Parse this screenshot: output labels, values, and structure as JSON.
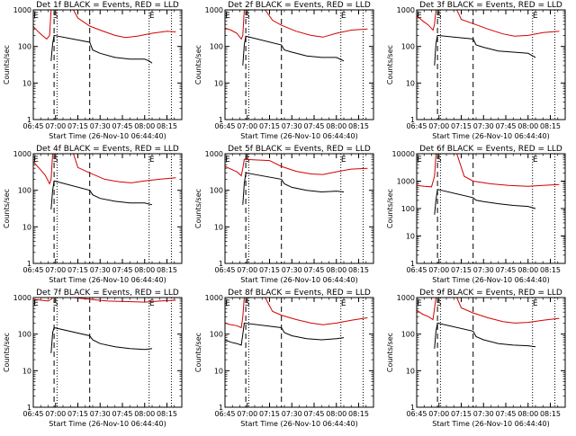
{
  "layout": {
    "rows": 3,
    "cols": 3
  },
  "colors": {
    "events": "#000000",
    "lld": "#d40000",
    "axes": "#000000",
    "background": "#ffffff"
  },
  "xaxis": {
    "tick_labels": [
      "06:45",
      "07:00",
      "07:15",
      "07:30",
      "07:45",
      "08:00",
      "08:15"
    ],
    "tick_minutes": [
      0,
      15,
      30,
      45,
      60,
      75,
      90
    ],
    "range_minutes": [
      0,
      100
    ],
    "label": "Start Time (26-Nov-10 06:44:40)"
  },
  "markers": {
    "S_minute": 15,
    "E_minute": 0,
    "E2_minute": 78,
    "dashed_minutes": [
      14,
      38
    ],
    "dotted_minutes": [
      16,
      78,
      93
    ],
    "S_label": "S",
    "E_label": "E"
  },
  "chart_data": [
    {
      "type": "line",
      "title": "Det 1f BLACK = Events, RED = LLD",
      "ylabel": "Counts/sec",
      "yscale": "log",
      "ylim": [
        1,
        1000
      ],
      "ytick_labels": [
        "1",
        "10",
        "100",
        "1000"
      ],
      "series": [
        {
          "color": "red",
          "points": [
            [
              0,
              350
            ],
            [
              3,
              260
            ],
            [
              6,
              200
            ],
            [
              9,
              160
            ],
            [
              11,
              200
            ],
            [
              12,
              1000
            ],
            [
              27,
              1000
            ],
            [
              30,
              600
            ],
            [
              38,
              360
            ],
            [
              45,
              280
            ],
            [
              55,
              200
            ],
            [
              62,
              175
            ],
            [
              70,
              190
            ],
            [
              80,
              230
            ],
            [
              90,
              260
            ],
            [
              96,
              250
            ]
          ]
        },
        {
          "color": "black",
          "points": [
            [
              12,
              40
            ],
            [
              13,
              120
            ],
            [
              14,
              200
            ],
            [
              38,
              130
            ],
            [
              40,
              80
            ],
            [
              45,
              65
            ],
            [
              55,
              50
            ],
            [
              65,
              45
            ],
            [
              75,
              45
            ],
            [
              78,
              40
            ],
            [
              80,
              35
            ]
          ]
        }
      ]
    },
    {
      "type": "line",
      "title": "Det 2f BLACK = Events, RED = LLD",
      "ylabel": "Counts/sec",
      "yscale": "log",
      "ylim": [
        1,
        1000
      ],
      "ytick_labels": [
        "1",
        "10",
        "100",
        "1000"
      ],
      "series": [
        {
          "color": "red",
          "points": [
            [
              0,
              320
            ],
            [
              4,
              280
            ],
            [
              8,
              230
            ],
            [
              11,
              160
            ],
            [
              12,
              200
            ],
            [
              13,
              1000
            ],
            [
              27,
              1000
            ],
            [
              32,
              520
            ],
            [
              38,
              380
            ],
            [
              48,
              260
            ],
            [
              58,
              200
            ],
            [
              66,
              180
            ],
            [
              75,
              230
            ],
            [
              85,
              280
            ],
            [
              96,
              300
            ]
          ]
        },
        {
          "color": "black",
          "points": [
            [
              12,
              30
            ],
            [
              13,
              110
            ],
            [
              14,
              190
            ],
            [
              38,
              110
            ],
            [
              40,
              80
            ],
            [
              45,
              70
            ],
            [
              55,
              55
            ],
            [
              65,
              50
            ],
            [
              75,
              50
            ],
            [
              80,
              40
            ]
          ]
        }
      ]
    },
    {
      "type": "line",
      "title": "Det 3f BLACK = Events, RED = LLD",
      "ylabel": "Counts/sec",
      "yscale": "log",
      "ylim": [
        1,
        1000
      ],
      "ytick_labels": [
        "1",
        "10",
        "100",
        "1000"
      ],
      "series": [
        {
          "color": "red",
          "points": [
            [
              0,
              700
            ],
            [
              4,
              500
            ],
            [
              8,
              380
            ],
            [
              11,
              280
            ],
            [
              12,
              400
            ],
            [
              13,
              1000
            ],
            [
              27,
              1000
            ],
            [
              30,
              550
            ],
            [
              38,
              420
            ],
            [
              48,
              300
            ],
            [
              58,
              220
            ],
            [
              66,
              190
            ],
            [
              75,
              200
            ],
            [
              85,
              240
            ],
            [
              96,
              260
            ]
          ]
        },
        {
          "color": "black",
          "points": [
            [
              12,
              30
            ],
            [
              13,
              120
            ],
            [
              14,
              200
            ],
            [
              38,
              160
            ],
            [
              40,
              110
            ],
            [
              45,
              95
            ],
            [
              55,
              75
            ],
            [
              65,
              70
            ],
            [
              75,
              65
            ],
            [
              80,
              50
            ]
          ]
        }
      ]
    },
    {
      "type": "line",
      "title": "Det 4f BLACK = Events, RED = LLD",
      "ylabel": "Counts/sec",
      "yscale": "log",
      "ylim": [
        1,
        1000
      ],
      "ytick_labels": [
        "1",
        "10",
        "100",
        "1000"
      ],
      "series": [
        {
          "color": "red",
          "points": [
            [
              0,
              600
            ],
            [
              4,
              400
            ],
            [
              8,
              260
            ],
            [
              11,
              150
            ],
            [
              12,
              200
            ],
            [
              13,
              1000
            ],
            [
              27,
              1000
            ],
            [
              30,
              420
            ],
            [
              38,
              300
            ],
            [
              48,
              200
            ],
            [
              58,
              170
            ],
            [
              66,
              160
            ],
            [
              75,
              180
            ],
            [
              85,
              200
            ],
            [
              96,
              220
            ]
          ]
        },
        {
          "color": "black",
          "points": [
            [
              12,
              30
            ],
            [
              13,
              100
            ],
            [
              14,
              180
            ],
            [
              38,
              100
            ],
            [
              40,
              75
            ],
            [
              45,
              60
            ],
            [
              55,
              50
            ],
            [
              65,
              45
            ],
            [
              75,
              45
            ],
            [
              80,
              40
            ]
          ]
        }
      ]
    },
    {
      "type": "line",
      "title": "Det 5f BLACK = Events, RED = LLD",
      "ylabel": "Counts/sec",
      "yscale": "log",
      "ylim": [
        1,
        1000
      ],
      "ytick_labels": [
        "1",
        "10",
        "100",
        "1000"
      ],
      "series": [
        {
          "color": "red",
          "points": [
            [
              0,
              450
            ],
            [
              4,
              380
            ],
            [
              8,
              320
            ],
            [
              11,
              250
            ],
            [
              12,
              400
            ],
            [
              13,
              700
            ],
            [
              30,
              650
            ],
            [
              38,
              450
            ],
            [
              48,
              330
            ],
            [
              58,
              280
            ],
            [
              66,
              270
            ],
            [
              75,
              320
            ],
            [
              85,
              380
            ],
            [
              96,
              400
            ]
          ]
        },
        {
          "color": "black",
          "points": [
            [
              12,
              40
            ],
            [
              13,
              150
            ],
            [
              14,
              300
            ],
            [
              38,
              200
            ],
            [
              40,
              150
            ],
            [
              45,
              120
            ],
            [
              55,
              100
            ],
            [
              65,
              90
            ],
            [
              75,
              95
            ],
            [
              80,
              90
            ]
          ]
        }
      ]
    },
    {
      "type": "line",
      "title": "Det 6f BLACK = Events, RED = LLD",
      "ylabel": "Counts/sec",
      "yscale": "log",
      "ylim": [
        1,
        10000
      ],
      "ytick_labels": [
        "1",
        "10",
        "100",
        "1000",
        "10000"
      ],
      "series": [
        {
          "color": "red",
          "points": [
            [
              0,
              700
            ],
            [
              5,
              650
            ],
            [
              10,
              620
            ],
            [
              12,
              1500
            ],
            [
              13,
              10000
            ],
            [
              27,
              10000
            ],
            [
              32,
              1500
            ],
            [
              38,
              1000
            ],
            [
              50,
              800
            ],
            [
              62,
              700
            ],
            [
              75,
              650
            ],
            [
              85,
              700
            ],
            [
              96,
              750
            ]
          ]
        },
        {
          "color": "black",
          "points": [
            [
              12,
              60
            ],
            [
              13,
              200
            ],
            [
              14,
              500
            ],
            [
              38,
              250
            ],
            [
              40,
              200
            ],
            [
              45,
              180
            ],
            [
              55,
              150
            ],
            [
              65,
              130
            ],
            [
              75,
              120
            ],
            [
              80,
              100
            ]
          ]
        }
      ]
    },
    {
      "type": "line",
      "title": "Det 7f BLACK = Events, RED = LLD",
      "ylabel": "Counts/sec",
      "yscale": "log",
      "ylim": [
        1,
        1000
      ],
      "ytick_labels": [
        "1",
        "10",
        "100",
        "1000"
      ],
      "series": [
        {
          "color": "red",
          "points": [
            [
              0,
              900
            ],
            [
              5,
              850
            ],
            [
              10,
              800
            ],
            [
              12,
              900
            ],
            [
              13,
              1000
            ],
            [
              27,
              1000
            ],
            [
              38,
              900
            ],
            [
              50,
              800
            ],
            [
              62,
              780
            ],
            [
              75,
              750
            ],
            [
              85,
              800
            ],
            [
              96,
              850
            ]
          ]
        },
        {
          "color": "black",
          "points": [
            [
              12,
              30
            ],
            [
              13,
              110
            ],
            [
              14,
              150
            ],
            [
              38,
              90
            ],
            [
              40,
              70
            ],
            [
              45,
              55
            ],
            [
              55,
              45
            ],
            [
              65,
              40
            ],
            [
              75,
              38
            ],
            [
              80,
              40
            ]
          ]
        }
      ]
    },
    {
      "type": "line",
      "title": "Det 8f BLACK = Events, RED = LLD",
      "ylabel": "Counts/sec",
      "yscale": "log",
      "ylim": [
        1,
        1000
      ],
      "ytick_labels": [
        "1",
        "10",
        "100",
        "1000"
      ],
      "series": [
        {
          "color": "red",
          "points": [
            [
              0,
              200
            ],
            [
              4,
              180
            ],
            [
              8,
              170
            ],
            [
              11,
              150
            ],
            [
              12,
              300
            ],
            [
              13,
              1000
            ],
            [
              27,
              1000
            ],
            [
              32,
              420
            ],
            [
              38,
              330
            ],
            [
              48,
              250
            ],
            [
              58,
              200
            ],
            [
              66,
              180
            ],
            [
              75,
              200
            ],
            [
              85,
              240
            ],
            [
              96,
              280
            ]
          ]
        },
        {
          "color": "black",
          "points": [
            [
              0,
              70
            ],
            [
              4,
              60
            ],
            [
              8,
              55
            ],
            [
              11,
              50
            ],
            [
              12,
              100
            ],
            [
              13,
              200
            ],
            [
              38,
              150
            ],
            [
              40,
              110
            ],
            [
              45,
              90
            ],
            [
              55,
              75
            ],
            [
              65,
              70
            ],
            [
              75,
              75
            ],
            [
              80,
              80
            ]
          ]
        }
      ]
    },
    {
      "type": "line",
      "title": "Det 9f BLACK = Events, RED = LLD",
      "ylabel": "Counts/sec",
      "yscale": "log",
      "ylim": [
        1,
        1000
      ],
      "ytick_labels": [
        "1",
        "10",
        "100",
        "1000"
      ],
      "series": [
        {
          "color": "red",
          "points": [
            [
              0,
              450
            ],
            [
              4,
              350
            ],
            [
              8,
              300
            ],
            [
              11,
              250
            ],
            [
              12,
              500
            ],
            [
              13,
              1000
            ],
            [
              27,
              1000
            ],
            [
              30,
              520
            ],
            [
              38,
              380
            ],
            [
              48,
              280
            ],
            [
              58,
              220
            ],
            [
              66,
              200
            ],
            [
              75,
              210
            ],
            [
              85,
              240
            ],
            [
              96,
              270
            ]
          ]
        },
        {
          "color": "black",
          "points": [
            [
              12,
              40
            ],
            [
              13,
              120
            ],
            [
              14,
              200
            ],
            [
              38,
              120
            ],
            [
              40,
              85
            ],
            [
              45,
              70
            ],
            [
              55,
              55
            ],
            [
              65,
              50
            ],
            [
              75,
              48
            ],
            [
              80,
              45
            ]
          ]
        }
      ]
    }
  ]
}
